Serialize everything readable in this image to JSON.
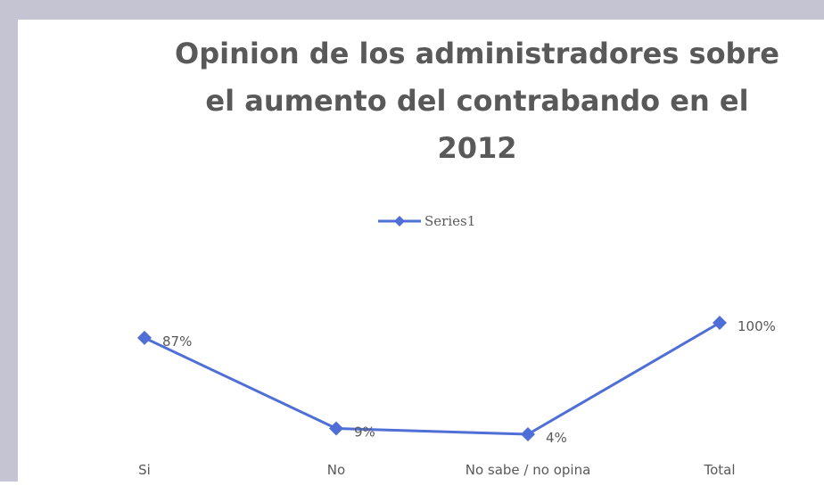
{
  "chart_data": {
    "type": "line",
    "title": "Opinion de los administradores sobre el aumento del contrabando en el 2012",
    "title_lines": [
      "Opinion de los administradores sobre",
      "el aumento del contrabando en el",
      "2012"
    ],
    "categories": [
      "Si",
      "No",
      "No sabe / no opina",
      "Total"
    ],
    "series": [
      {
        "name": "Series1",
        "values": [
          0.87,
          0.09,
          0.04,
          1.0
        ],
        "labels": [
          "87%",
          "9%",
          "4%",
          "100%"
        ]
      }
    ],
    "legend_position": "top-center",
    "grid": false,
    "line_color": "#4f6fd6",
    "marker": "diamond"
  }
}
